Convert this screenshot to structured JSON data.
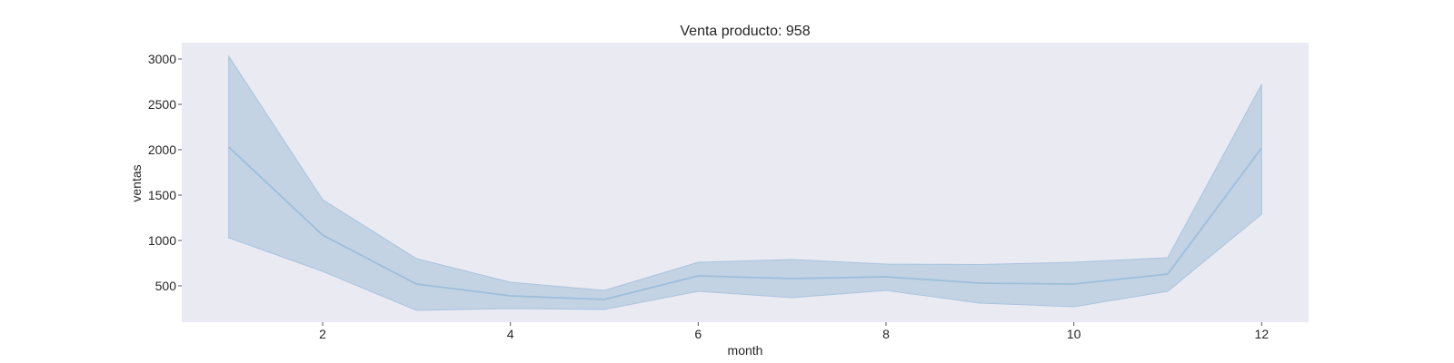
{
  "chart_data": {
    "type": "line",
    "title": "Venta producto: 958",
    "xlabel": "month",
    "ylabel": "ventas",
    "xlim": [
      0.5,
      12.5
    ],
    "ylim": [
      100,
      3180
    ],
    "x_ticks": [
      2,
      4,
      6,
      8,
      10,
      12
    ],
    "y_ticks": [
      500,
      1000,
      1500,
      2000,
      2500,
      3000
    ],
    "grid": false,
    "legend": "none",
    "colors": {
      "plot_background": "#eaeaf2",
      "line": "#9dbedb",
      "band": "#c3d3e4",
      "band_edge": "#a9c4de"
    },
    "series": [
      {
        "x": [
          1,
          2,
          3,
          4,
          5,
          6,
          7,
          8,
          9,
          10,
          11,
          12
        ],
        "values": [
          2030,
          1060,
          520,
          390,
          350,
          610,
          580,
          600,
          530,
          520,
          630,
          2020
        ],
        "lower": [
          1030,
          660,
          230,
          250,
          240,
          440,
          370,
          450,
          310,
          270,
          440,
          1290
        ],
        "upper": [
          3030,
          1450,
          800,
          540,
          450,
          760,
          790,
          740,
          735,
          760,
          810,
          2720
        ]
      }
    ]
  }
}
